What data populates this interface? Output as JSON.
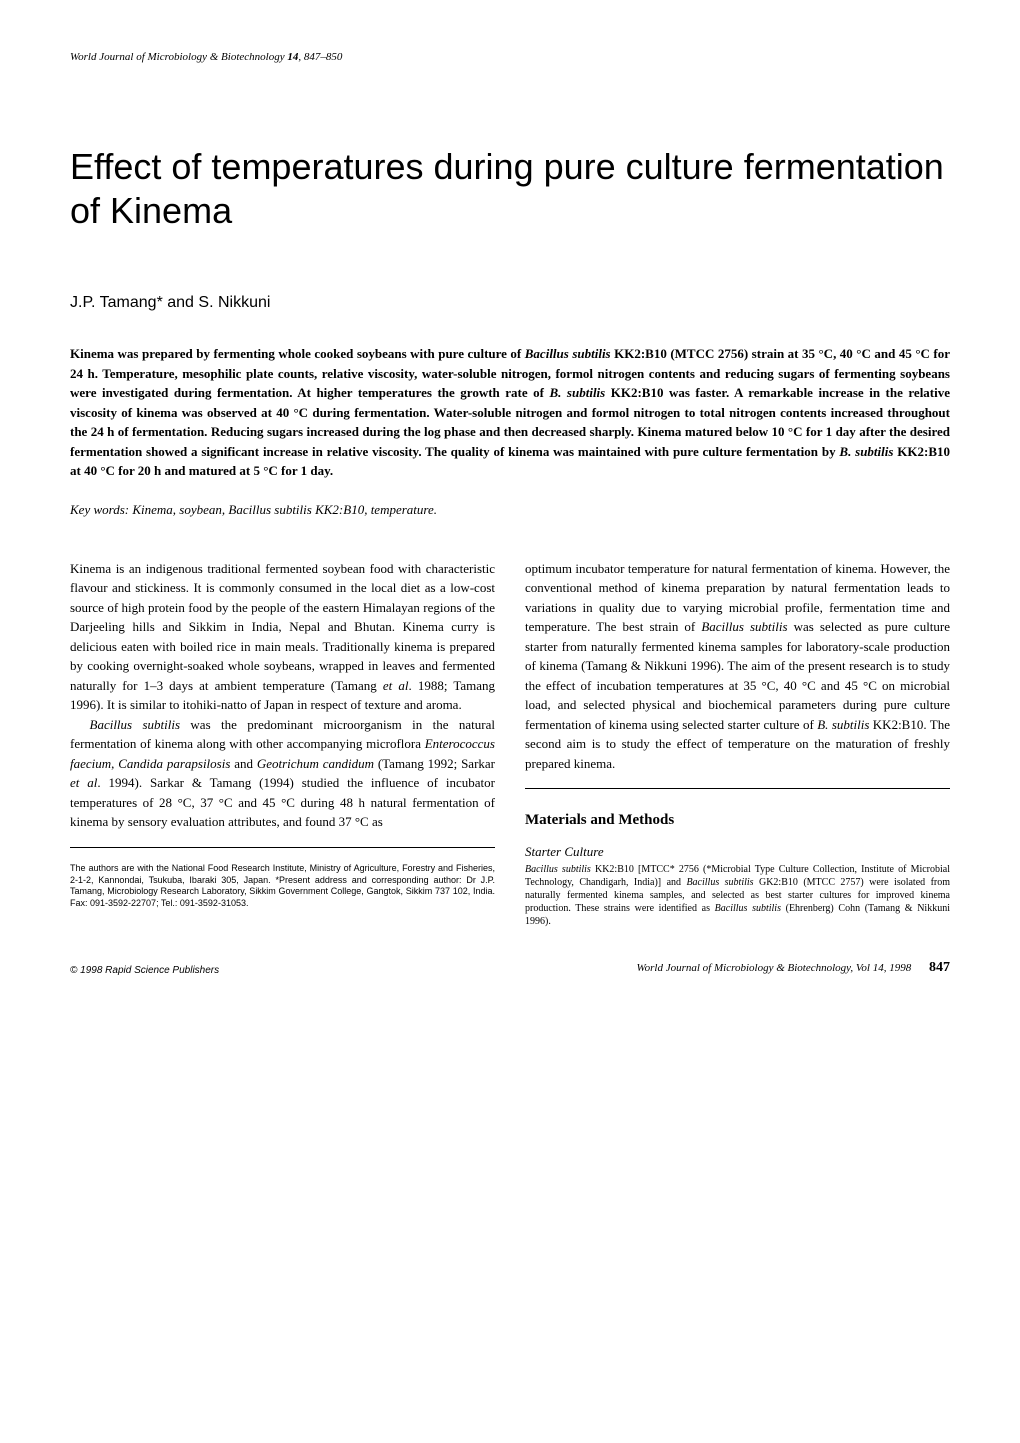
{
  "journal": {
    "name": "World Journal of Microbiology & Biotechnology",
    "volume": "14",
    "pages": "847–850"
  },
  "title": "Effect of temperatures during pure culture fermentation of Kinema",
  "authors": "J.P. Tamang* and S. Nikkuni",
  "abstract": "Kinema was prepared by fermenting whole cooked soybeans with pure culture of Bacillus subtilis KK2:B10 (MTCC 2756) strain at 35 °C, 40 °C and 45 °C for 24 h. Temperature, mesophilic plate counts, relative viscosity, water-soluble nitrogen, formol nitrogen contents and reducing sugars of fermenting soybeans were investigated during fermentation. At higher temperatures the growth rate of B. subtilis KK2:B10 was faster. A remarkable increase in the relative viscosity of kinema was observed at 40 °C during fermentation. Water-soluble nitrogen and formol nitrogen to total nitrogen contents increased throughout the 24 h of fermentation. Reducing sugars increased during the log phase and then decreased sharply. Kinema matured below 10 °C for 1 day after the desired fermentation showed a significant increase in relative viscosity. The quality of kinema was maintained with pure culture fermentation by B. subtilis KK2:B10 at 40 °C for 20 h and matured at 5 °C for 1 day.",
  "keywords": {
    "label": "Key words:",
    "text": " Kinema, soybean, Bacillus subtilis KK2:B10, temperature."
  },
  "column1": {
    "para1": "Kinema is an indigenous traditional fermented soybean food with characteristic flavour and stickiness. It is commonly consumed in the local diet as a low-cost source of high protein food by the people of the eastern Himalayan regions of the Darjeeling hills and Sikkim in India, Nepal and Bhutan. Kinema curry is delicious eaten with boiled rice in main meals. Traditionally kinema is prepared by cooking overnight-soaked whole soybeans, wrapped in leaves and fermented naturally for 1–3 days at ambient temperature (Tamang et al. 1988; Tamang 1996). It is similar to itohiki-natto of Japan in respect of texture and aroma.",
    "para2": "Bacillus subtilis was the predominant microorganism in the natural fermentation of kinema along with other accompanying microflora Enterococcus faecium, Candida parapsilosis and Geotrichum candidum (Tamang 1992; Sarkar et al. 1994). Sarkar & Tamang (1994) studied the influence of incubator temperatures of 28 °C, 37 °C and 45 °C during 48 h natural fermentation of kinema by sensory evaluation attributes, and found 37 °C as"
  },
  "affiliation": "The authors are with the National Food Research Institute, Ministry of Agriculture, Forestry and Fisheries, 2-1-2, Kannondai, Tsukuba, Ibaraki 305, Japan. *Present address and corresponding author: Dr J.P. Tamang, Microbiology Research Laboratory, Sikkim Government College, Gangtok, Sikkim 737 102, India. Fax: 091-3592-22707; Tel.: 091-3592-31053.",
  "column2": {
    "para1": "optimum incubator temperature for natural fermentation of kinema. However, the conventional method of kinema preparation by natural fermentation leads to variations in quality due to varying microbial profile, fermentation time and temperature. The best strain of Bacillus subtilis was selected as pure culture starter from naturally fermented kinema samples for laboratory-scale production of kinema (Tamang & Nikkuni 1996). The aim of the present research is to study the effect of incubation temperatures at 35 °C, 40 °C and 45 °C on microbial load, and selected physical and biochemical parameters during pure culture fermentation of kinema using selected starter culture of B. subtilis KK2:B10. The second aim is to study the effect of temperature on the maturation of freshly prepared kinema.",
    "section_heading": "Materials and Methods",
    "subsection_heading": "Starter Culture",
    "para2": "Bacillus subtilis KK2:B10 [MTCC* 2756 (*Microbial Type Culture Collection, Institute of Microbial Technology, Chandigarh, India)] and Bacillus subtilis GK2:B10 (MTCC 2757) were isolated from naturally fermented kinema samples, and selected as best starter cultures for improved kinema production. These strains were identified as Bacillus subtilis (Ehrenberg) Cohn (Tamang & Nikkuni 1996)."
  },
  "footer": {
    "copyright": "© 1998 Rapid Science Publishers",
    "citation": "World Journal of Microbiology & Biotechnology, Vol 14, 1998",
    "page": "847"
  }
}
